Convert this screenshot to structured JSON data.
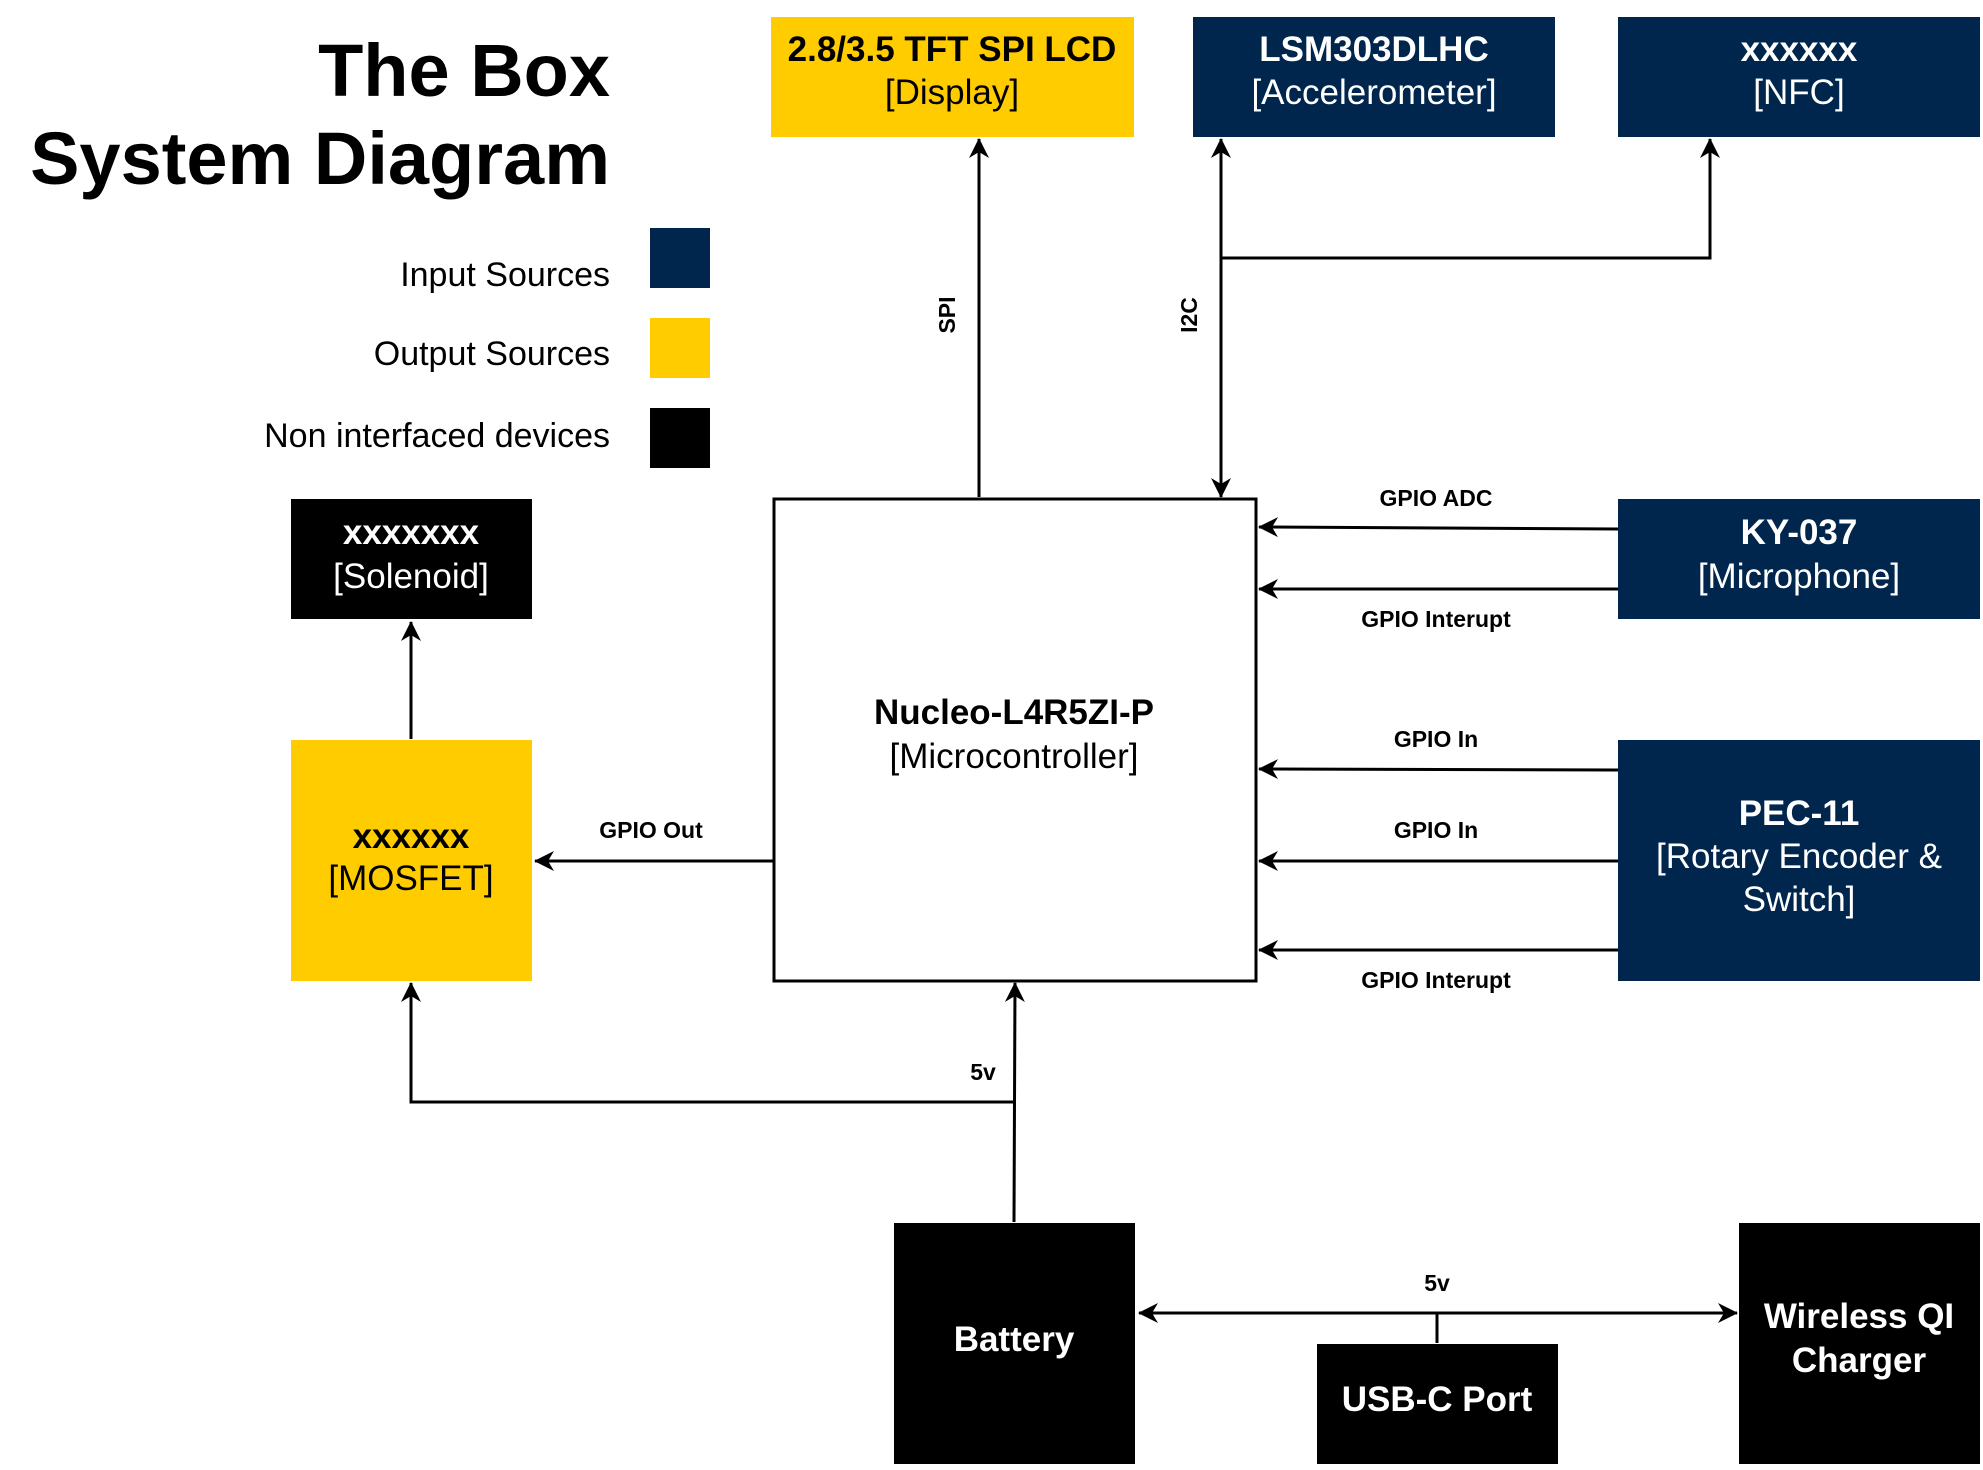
{
  "title": {
    "line1": "The Box",
    "line2": "System Diagram"
  },
  "colors": {
    "input": "#00264d",
    "output": "#ffcc00",
    "non_interfaced": "#000000",
    "controller": "#ffffff"
  },
  "legend": [
    {
      "label": "Input Sources",
      "color": "#00264d"
    },
    {
      "label": "Output Sources",
      "color": "#ffcc00"
    },
    {
      "label": "Non interfaced devices",
      "color": "#000000"
    }
  ],
  "nodes": {
    "display": {
      "name": "2.8/3.5 TFT SPI LCD",
      "role": "[Display]"
    },
    "accelerometer": {
      "name": "LSM303DLHC",
      "role": "[Accelerometer]"
    },
    "nfc": {
      "name": "xxxxxx",
      "role": "[NFC]"
    },
    "solenoid": {
      "name": "xxxxxxx",
      "role": "[Solenoid]"
    },
    "mosfet": {
      "name": "xxxxxx",
      "role": "[MOSFET]"
    },
    "microcontroller": {
      "name": "Nucleo-L4R5ZI-P",
      "role": "[Microcontroller]"
    },
    "microphone": {
      "name": "KY-037",
      "role": "[Microphone]"
    },
    "encoder": {
      "name": "PEC-11",
      "role_line1": "[Rotary Encoder &",
      "role_line2": "Switch]"
    },
    "battery": {
      "name": "Battery"
    },
    "usbc": {
      "name": "USB-C Port"
    },
    "charger": {
      "name_line1": "Wireless QI",
      "name_line2": "Charger"
    }
  },
  "edges": {
    "spi": "SPI",
    "i2c": "I2C",
    "gpio_adc": "GPIO ADC",
    "gpio_interrupt_mic": "GPIO Interupt",
    "gpio_in_1": "GPIO In",
    "gpio_in_2": "GPIO In",
    "gpio_interrupt_enc": "GPIO Interupt",
    "gpio_out": "GPIO Out",
    "power_5v_mcu": "5v",
    "power_5v_usb": "5v"
  }
}
